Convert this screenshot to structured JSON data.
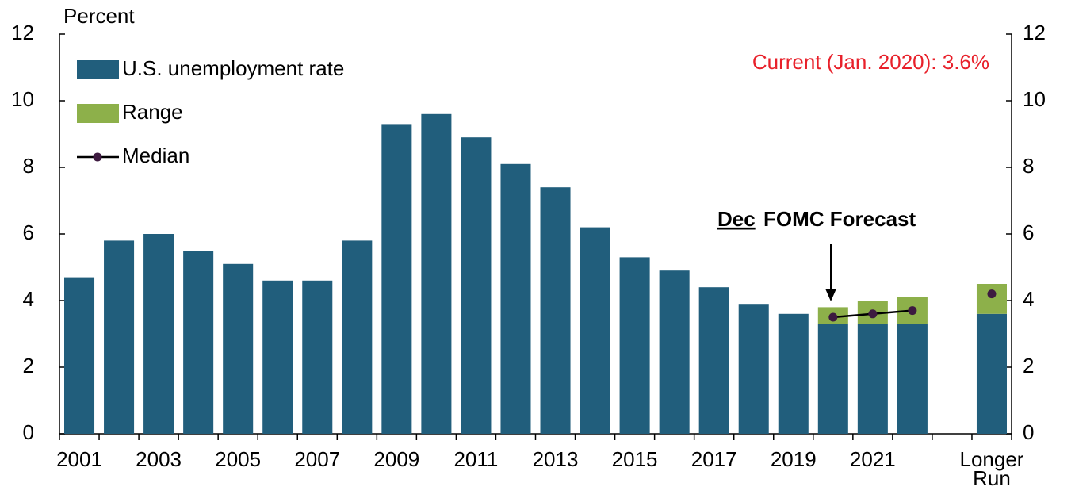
{
  "chart_data": {
    "type": "bar",
    "y_label": "Percent",
    "categories": [
      "2001",
      null,
      "2003",
      null,
      "2005",
      null,
      "2007",
      null,
      "2009",
      null,
      "2011",
      null,
      "2013",
      null,
      "2015",
      null,
      "2017",
      null,
      "2019",
      null,
      "2021",
      null,
      null,
      "Longer Run"
    ],
    "series": [
      {
        "name": "U.S. unemployment rate",
        "color": "#215e7c",
        "values": [
          4.7,
          5.8,
          6.0,
          5.5,
          5.1,
          4.6,
          4.6,
          5.8,
          9.3,
          9.6,
          8.9,
          8.1,
          7.4,
          6.2,
          5.3,
          4.9,
          4.4,
          3.9,
          3.6,
          3.3,
          3.3,
          3.3,
          null,
          3.6
        ]
      },
      {
        "name": "Range",
        "color": "#8db04a",
        "values": [
          null,
          null,
          null,
          null,
          null,
          null,
          null,
          null,
          null,
          null,
          null,
          null,
          null,
          null,
          null,
          null,
          null,
          null,
          null,
          0.5,
          0.7,
          0.8,
          null,
          0.9
        ]
      },
      {
        "name": "Median",
        "type": "line",
        "color": "#3d1a40",
        "values": [
          null,
          null,
          null,
          null,
          null,
          null,
          null,
          null,
          null,
          null,
          null,
          null,
          null,
          null,
          null,
          null,
          null,
          null,
          null,
          3.5,
          3.6,
          3.7,
          null,
          4.2
        ]
      }
    ],
    "ylim": [
      0,
      12
    ],
    "yticks": [
      0,
      2,
      4,
      6,
      8,
      10,
      12
    ],
    "y2lim": [
      0,
      12
    ],
    "y2ticks": [
      0,
      2,
      4,
      6,
      8,
      10,
      12
    ],
    "annotations": {
      "current": "Current (Jan. 2020): 3.6%",
      "forecast_month": "Dec",
      "forecast_label": "FOMC Forecast"
    },
    "legend": "upper left"
  }
}
